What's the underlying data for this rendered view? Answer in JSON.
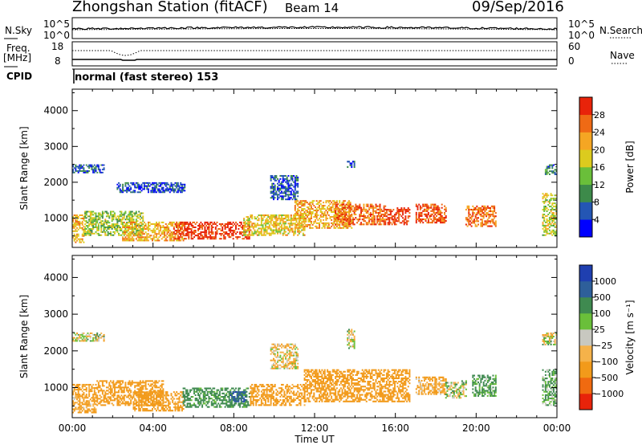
{
  "header": {
    "station": "Zhongshan Station (fitACF)",
    "beam": "Beam 14",
    "date": "09/Sep/2016"
  },
  "noise_panel": {
    "left_label": "N.Sky",
    "right_label": "N.Search",
    "left_ticks": [
      "10^5",
      "10^0"
    ],
    "right_ticks": [
      "10^5",
      "10^0"
    ]
  },
  "freq_panel": {
    "left_label": "Freq.",
    "left_unit": "[MHz]",
    "right_label": "Nave",
    "left_ticks": [
      "18",
      "8"
    ],
    "right_ticks": [
      "60",
      "0"
    ]
  },
  "cpid": {
    "label": "CPID",
    "text": "normal (fast stereo) 153"
  },
  "colors": {
    "power_scale": [
      "#0000ff",
      "#2456b4",
      "#3d8a4a",
      "#6abf3a",
      "#dccb1e",
      "#f5a623",
      "#ef6a15",
      "#e8230a"
    ],
    "velocity_scale": [
      "#e8230a",
      "#f06a10",
      "#f29a1a",
      "#f5b24a",
      "#c8c8c0",
      "#6abf3a",
      "#3f8a50",
      "#2e5f9a",
      "#1f3fb0"
    ]
  },
  "chart_data": [
    {
      "type": "heatmap",
      "panel": "power",
      "ylabel": "Slant Range [km]",
      "xlabel": "",
      "x_ticks": [
        "00:00",
        "04:00",
        "08:00",
        "12:00",
        "16:00",
        "20:00",
        "00:00"
      ],
      "x_range_hours": [
        0,
        24
      ],
      "ylim": [
        180,
        4600
      ],
      "y_ticks": [
        "1000",
        "2000",
        "3000",
        "4000"
      ],
      "y_tick_values": [
        1000,
        2000,
        3000,
        4000
      ],
      "colorbar": {
        "label": "Power [dB]",
        "ticks": [
          "4",
          "8",
          "12",
          "16",
          "20",
          "24",
          "28"
        ],
        "range": [
          0,
          30
        ]
      },
      "regions": [
        {
          "t0": 0.0,
          "t1": 1.6,
          "r0": 2250,
          "r1": 2500,
          "v": 6
        },
        {
          "t0": 0.0,
          "t1": 0.6,
          "r0": 300,
          "r1": 1100,
          "v": 20
        },
        {
          "t0": 0.6,
          "t1": 3.5,
          "r0": 500,
          "r1": 1200,
          "v": 14
        },
        {
          "t0": 2.5,
          "t1": 5.5,
          "r0": 350,
          "r1": 900,
          "v": 20
        },
        {
          "t0": 5.0,
          "t1": 8.8,
          "r0": 400,
          "r1": 900,
          "v": 28
        },
        {
          "t0": 8.5,
          "t1": 11.5,
          "r0": 500,
          "r1": 1100,
          "v": 18
        },
        {
          "t0": 11.0,
          "t1": 13.8,
          "r0": 700,
          "r1": 1500,
          "v": 20
        },
        {
          "t0": 13.0,
          "t1": 15.5,
          "r0": 800,
          "r1": 1400,
          "v": 24
        },
        {
          "t0": 15.5,
          "t1": 16.7,
          "r0": 800,
          "r1": 1300,
          "v": 28
        },
        {
          "t0": 17.0,
          "t1": 18.5,
          "r0": 850,
          "r1": 1400,
          "v": 26
        },
        {
          "t0": 19.5,
          "t1": 21.0,
          "r0": 750,
          "r1": 1350,
          "v": 24
        },
        {
          "t0": 23.3,
          "t1": 24.0,
          "r0": 500,
          "r1": 1700,
          "v": 16
        },
        {
          "t0": 23.4,
          "t1": 24.0,
          "r0": 2200,
          "r1": 2500,
          "v": 8
        },
        {
          "t0": 13.6,
          "t1": 14.0,
          "r0": 2400,
          "r1": 2600,
          "v": 6
        },
        {
          "t0": 9.8,
          "t1": 11.2,
          "r0": 1500,
          "r1": 2200,
          "v": 6
        },
        {
          "t0": 2.2,
          "t1": 5.6,
          "r0": 1700,
          "r1": 2000,
          "v": 5
        }
      ]
    },
    {
      "type": "heatmap",
      "panel": "velocity",
      "ylabel": "Slant Range [km]",
      "xlabel": "Time UT",
      "x_ticks": [
        "00:00",
        "04:00",
        "08:00",
        "12:00",
        "16:00",
        "20:00",
        "00:00"
      ],
      "x_range_hours": [
        0,
        24
      ],
      "ylim": [
        180,
        4600
      ],
      "y_ticks": [
        "1000",
        "2000",
        "3000",
        "4000"
      ],
      "y_tick_values": [
        1000,
        2000,
        3000,
        4000
      ],
      "colorbar": {
        "label": "Velocity [m s⁻¹]",
        "ticks": [
          "1000",
          "500",
          "100",
          "25",
          "−25",
          "−100",
          "−500",
          "−1000"
        ],
        "range": [
          -1000,
          1000
        ]
      },
      "regions": [
        {
          "t0": 0.0,
          "t1": 1.6,
          "r0": 2250,
          "r1": 2500,
          "v": 0
        },
        {
          "t0": 0.0,
          "t1": 1.2,
          "r0": 300,
          "r1": 1100,
          "v": -150
        },
        {
          "t0": 1.2,
          "t1": 4.5,
          "r0": 500,
          "r1": 1200,
          "v": -300
        },
        {
          "t0": 3.0,
          "t1": 5.5,
          "r0": 350,
          "r1": 900,
          "v": -200
        },
        {
          "t0": 5.5,
          "t1": 8.8,
          "r0": 450,
          "r1": 1000,
          "v": 200
        },
        {
          "t0": 7.8,
          "t1": 8.6,
          "r0": 600,
          "r1": 900,
          "v": 900
        },
        {
          "t0": 8.8,
          "t1": 11.5,
          "r0": 500,
          "r1": 1100,
          "v": -200
        },
        {
          "t0": 11.5,
          "t1": 16.7,
          "r0": 600,
          "r1": 1500,
          "v": -250
        },
        {
          "t0": 17.0,
          "t1": 18.5,
          "r0": 800,
          "r1": 1300,
          "v": -120
        },
        {
          "t0": 18.5,
          "t1": 19.5,
          "r0": 700,
          "r1": 1200,
          "v": 40
        },
        {
          "t0": 19.8,
          "t1": 21.0,
          "r0": 750,
          "r1": 1350,
          "v": 150
        },
        {
          "t0": 23.3,
          "t1": 24.0,
          "r0": 2150,
          "r1": 2500,
          "v": 0
        },
        {
          "t0": 23.3,
          "t1": 24.0,
          "r0": 500,
          "r1": 1500,
          "v": 120
        },
        {
          "t0": 13.6,
          "t1": 14.0,
          "r0": 2050,
          "r1": 2600,
          "v": 0
        },
        {
          "t0": 9.8,
          "t1": 11.2,
          "r0": 1500,
          "r1": 2200,
          "v": -60
        }
      ]
    }
  ]
}
